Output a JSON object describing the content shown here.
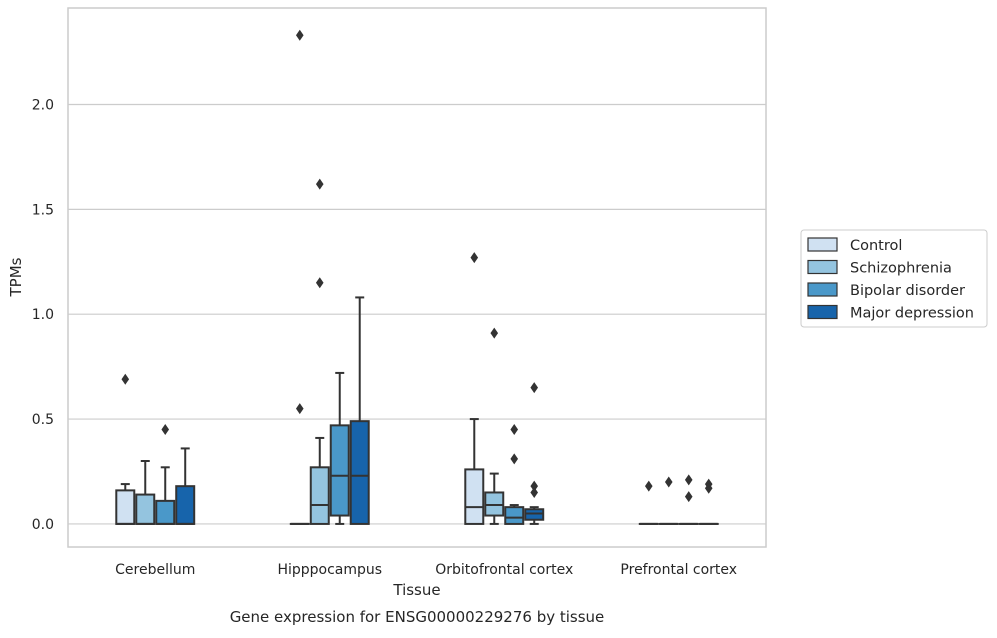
{
  "caption": "Gene expression for ENSG00000229276 by tissue",
  "chart_data": {
    "type": "boxplot",
    "title": "",
    "xlabel": "Tissue",
    "ylabel": "TPMs",
    "ylim": [
      -0.11,
      2.46
    ],
    "yticks": [
      0.0,
      0.5,
      1.0,
      1.5,
      2.0
    ],
    "ytick_labels": [
      "0.0",
      "0.5",
      "1.0",
      "1.5",
      "2.0"
    ],
    "grid": "horizontal",
    "legend_position": "right",
    "categories": [
      "Cerebellum",
      "Hipppocampus",
      "Orbitofrontal cortex",
      "Prefrontal cortex"
    ],
    "series": [
      {
        "name": "Control",
        "color": "#d0e1f2",
        "boxes": [
          {
            "min": 0.0,
            "q1": 0.0,
            "median": 0.0,
            "q3": 0.16,
            "max": 0.19,
            "outliers": [
              0.69
            ]
          },
          {
            "min": 0.0,
            "q1": 0.0,
            "median": 0.0,
            "q3": 0.0,
            "max": 0.0,
            "outliers": [
              0.55,
              2.33
            ]
          },
          {
            "min": 0.0,
            "q1": 0.0,
            "median": 0.08,
            "q3": 0.26,
            "max": 0.5,
            "outliers": [
              1.27
            ]
          },
          {
            "min": 0.0,
            "q1": 0.0,
            "median": 0.0,
            "q3": 0.0,
            "max": 0.0,
            "outliers": [
              0.18
            ]
          }
        ]
      },
      {
        "name": "Schizophrenia",
        "color": "#94c4df",
        "boxes": [
          {
            "min": 0.0,
            "q1": 0.0,
            "median": 0.0,
            "q3": 0.14,
            "max": 0.3,
            "outliers": []
          },
          {
            "min": 0.0,
            "q1": 0.0,
            "median": 0.09,
            "q3": 0.27,
            "max": 0.41,
            "outliers": [
              1.15,
              1.62
            ]
          },
          {
            "min": 0.0,
            "q1": 0.04,
            "median": 0.09,
            "q3": 0.15,
            "max": 0.24,
            "outliers": [
              0.91
            ]
          },
          {
            "min": 0.0,
            "q1": 0.0,
            "median": 0.0,
            "q3": 0.0,
            "max": 0.0,
            "outliers": [
              0.2
            ]
          }
        ]
      },
      {
        "name": "Bipolar disorder",
        "color": "#4a98c9",
        "boxes": [
          {
            "min": 0.0,
            "q1": 0.0,
            "median": 0.0,
            "q3": 0.11,
            "max": 0.27,
            "outliers": [
              0.45
            ]
          },
          {
            "min": 0.0,
            "q1": 0.04,
            "median": 0.23,
            "q3": 0.47,
            "max": 0.72,
            "outliers": []
          },
          {
            "min": 0.0,
            "q1": 0.0,
            "median": 0.03,
            "q3": 0.08,
            "max": 0.09,
            "outliers": [
              0.31,
              0.45
            ]
          },
          {
            "min": 0.0,
            "q1": 0.0,
            "median": 0.0,
            "q3": 0.0,
            "max": 0.0,
            "outliers": [
              0.13,
              0.21
            ]
          }
        ]
      },
      {
        "name": "Major depression",
        "color": "#1764ab",
        "boxes": [
          {
            "min": 0.0,
            "q1": 0.0,
            "median": 0.0,
            "q3": 0.18,
            "max": 0.36,
            "outliers": []
          },
          {
            "min": 0.0,
            "q1": 0.0,
            "median": 0.23,
            "q3": 0.49,
            "max": 1.08,
            "outliers": []
          },
          {
            "min": 0.0,
            "q1": 0.02,
            "median": 0.05,
            "q3": 0.07,
            "max": 0.08,
            "outliers": [
              0.15,
              0.18,
              0.65
            ]
          },
          {
            "min": 0.0,
            "q1": 0.0,
            "median": 0.0,
            "q3": 0.0,
            "max": 0.0,
            "outliers": [
              0.17,
              0.19
            ]
          }
        ]
      }
    ]
  }
}
